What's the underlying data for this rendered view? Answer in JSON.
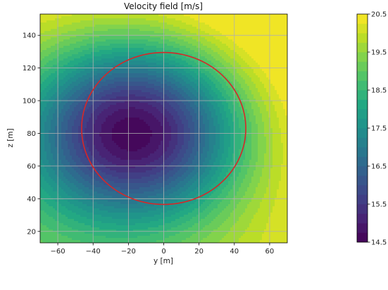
{
  "chart_data": [
    {
      "type": "contour",
      "title": "Velocity field [m/s]",
      "xlabel": "y [m]",
      "ylabel": "z [m]",
      "xlim": [
        -70,
        70
      ],
      "ylim": [
        13,
        153
      ],
      "xticks": [
        -60,
        -40,
        -20,
        0,
        20,
        40,
        60
      ],
      "yticks": [
        20,
        40,
        60,
        80,
        100,
        120,
        140
      ],
      "xtick_labels": [
        "−60",
        "−40",
        "−20",
        "0",
        "20",
        "40",
        "60"
      ],
      "ytick_labels": [
        "20",
        "40",
        "60",
        "80",
        "100",
        "120",
        "140"
      ],
      "grid": true,
      "colormap": "viridis",
      "field_min_location": [
        -16,
        82
      ],
      "field_min_value": 14.6,
      "levels": [
        14.5,
        14.75,
        15.0,
        15.25,
        15.5,
        15.75,
        16.0,
        16.25,
        16.5,
        16.75,
        17.0,
        17.25,
        17.5,
        17.75,
        18.0,
        18.25,
        18.5,
        18.75,
        19.0,
        19.25,
        19.5,
        19.75,
        20.0,
        20.25,
        20.5
      ],
      "circle": {
        "center": [
          0,
          83
        ],
        "radius": 46.5,
        "color": "#d62728"
      }
    },
    {
      "type": "colorbar",
      "range": [
        14.5,
        20.5
      ],
      "ticks": [
        14.5,
        15.5,
        16.5,
        17.5,
        18.5,
        19.5,
        20.5
      ],
      "tick_labels": [
        "14.5",
        "15.5",
        "16.5",
        "17.5",
        "18.5",
        "19.5",
        "20.5"
      ],
      "colormap": "viridis"
    }
  ]
}
